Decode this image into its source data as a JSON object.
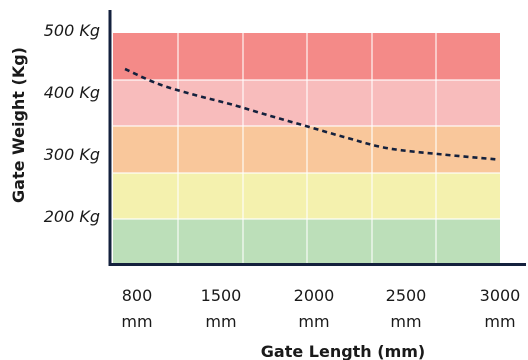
{
  "chart_data": {
    "type": "line",
    "xlabel": "Gate Length (mm)",
    "ylabel": "Gate Weight (Kg)",
    "x_tick_values": [
      800,
      1500,
      2000,
      2500,
      3000
    ],
    "x_tick_labels": [
      {
        "value": "800",
        "unit": "mm"
      },
      {
        "value": "1500",
        "unit": "mm"
      },
      {
        "value": "2000",
        "unit": "mm"
      },
      {
        "value": "2500",
        "unit": "mm"
      },
      {
        "value": "3000",
        "unit": "mm"
      }
    ],
    "y_tick_values": [
      200,
      300,
      400,
      500
    ],
    "y_tick_labels": [
      "200 Kg",
      "300 Kg",
      "400 Kg",
      "500 Kg"
    ],
    "ylim": [
      100,
      550
    ],
    "bands": [
      {
        "from": 100,
        "to": 200,
        "color": "#bcdfb9"
      },
      {
        "from": 200,
        "to": 300,
        "color": "#f4f1ae"
      },
      {
        "from": 300,
        "to": 400,
        "color": "#f9c79b"
      },
      {
        "from": 400,
        "to": 500,
        "color": "#f8bcbc"
      },
      {
        "from": 500,
        "to": 600,
        "color": "#f48a88"
      }
    ],
    "series": [
      {
        "line_style": "dashed",
        "color": "#14213d",
        "x": [
          800,
          1000,
          1250,
          1500,
          1750,
          2000,
          2250,
          2500,
          2750,
          3000
        ],
        "y": [
          442,
          418,
          400,
          385,
          366,
          348,
          330,
          314,
          304,
          296
        ]
      }
    ],
    "grid": "vertical lines at x ticks",
    "axis_color": "#14213d"
  }
}
